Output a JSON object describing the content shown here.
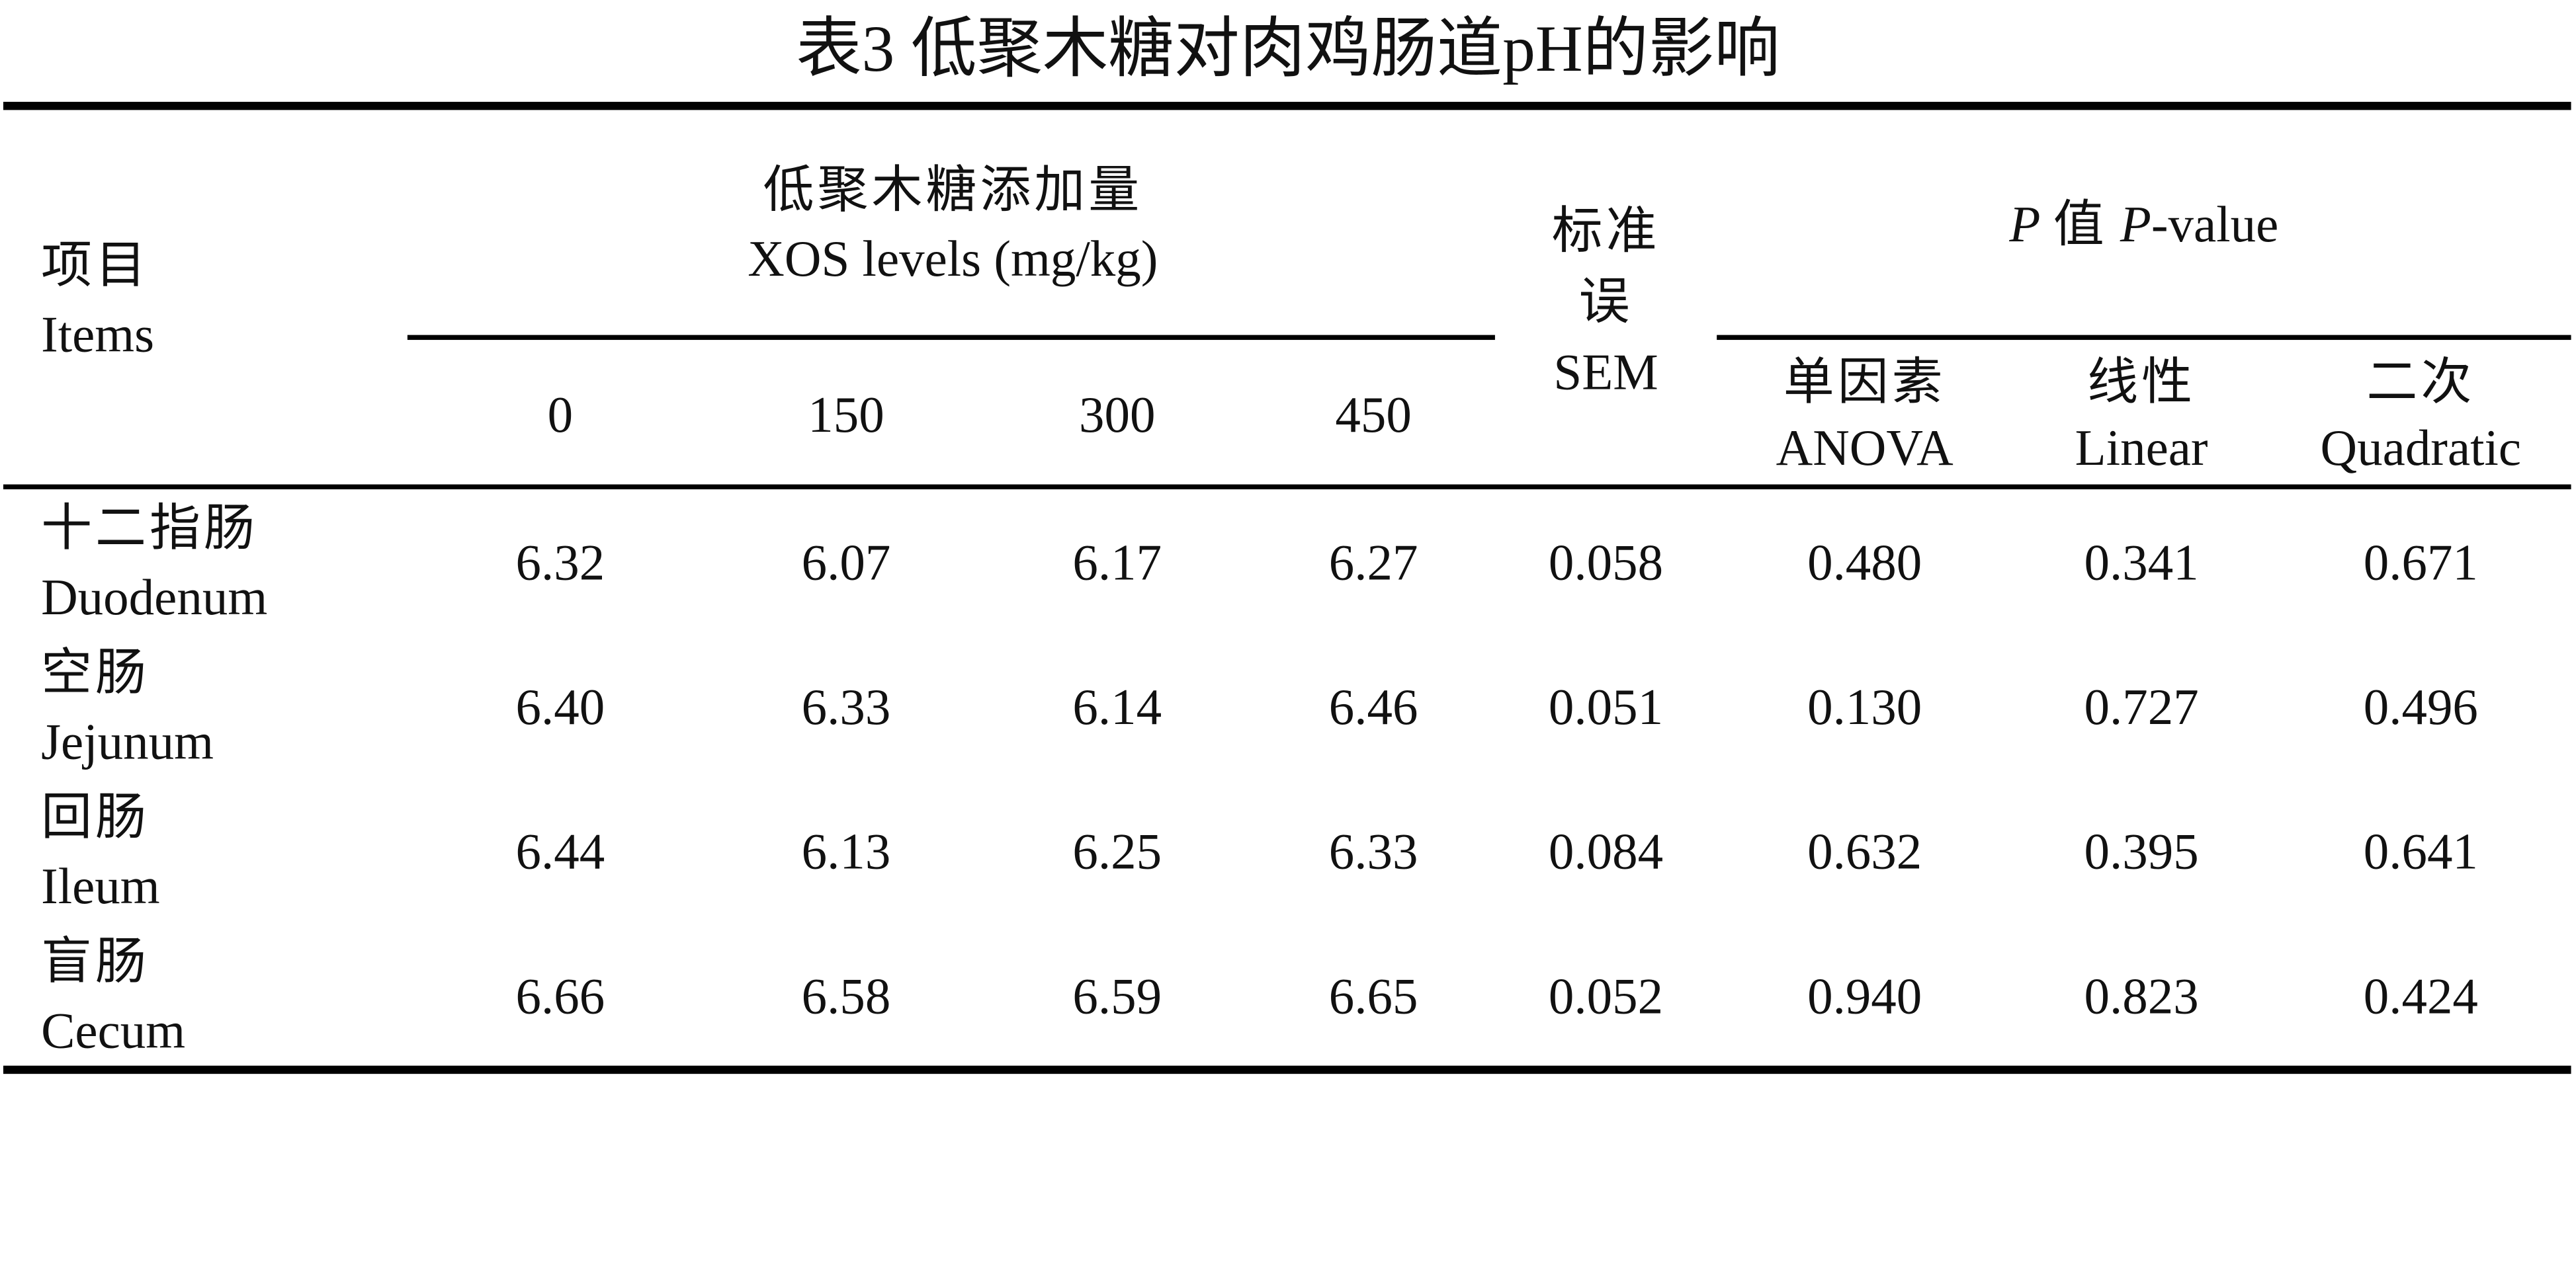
{
  "title": "表3 低聚木糖对肉鸡肠道pH的影响",
  "header": {
    "items": {
      "zh": "项目",
      "en": "Items"
    },
    "xos_levels": {
      "zh": "低聚木糖添加量",
      "en": "XOS levels (mg/kg)"
    },
    "levels": [
      "0",
      "150",
      "300",
      "450"
    ],
    "sem": {
      "zh": "标准误",
      "en": "SEM"
    },
    "p_value": {
      "p1": "P",
      "zh": "值",
      "p2": "P",
      "suffix": "-value"
    },
    "tests": [
      {
        "zh": "单因素",
        "en": "ANOVA"
      },
      {
        "zh": "线性",
        "en": "Linear"
      },
      {
        "zh": "二次",
        "en": "Quadratic"
      }
    ]
  },
  "rows": [
    {
      "zh": "十二指肠",
      "en": "Duodenum",
      "values": [
        "6.32",
        "6.07",
        "6.17",
        "6.27"
      ],
      "sem": "0.058",
      "anova": "0.480",
      "linear": "0.341",
      "quadratic": "0.671"
    },
    {
      "zh": "空肠",
      "en": "Jejunum",
      "values": [
        "6.40",
        "6.33",
        "6.14",
        "6.46"
      ],
      "sem": "0.051",
      "anova": "0.130",
      "linear": "0.727",
      "quadratic": "0.496"
    },
    {
      "zh": "回肠",
      "en": "Ileum",
      "values": [
        "6.44",
        "6.13",
        "6.25",
        "6.33"
      ],
      "sem": "0.084",
      "anova": "0.632",
      "linear": "0.395",
      "quadratic": "0.641"
    },
    {
      "zh": "盲肠",
      "en": "Cecum",
      "values": [
        "6.66",
        "6.58",
        "6.59",
        "6.65"
      ],
      "sem": "0.052",
      "anova": "0.940",
      "linear": "0.823",
      "quadratic": "0.424"
    }
  ]
}
